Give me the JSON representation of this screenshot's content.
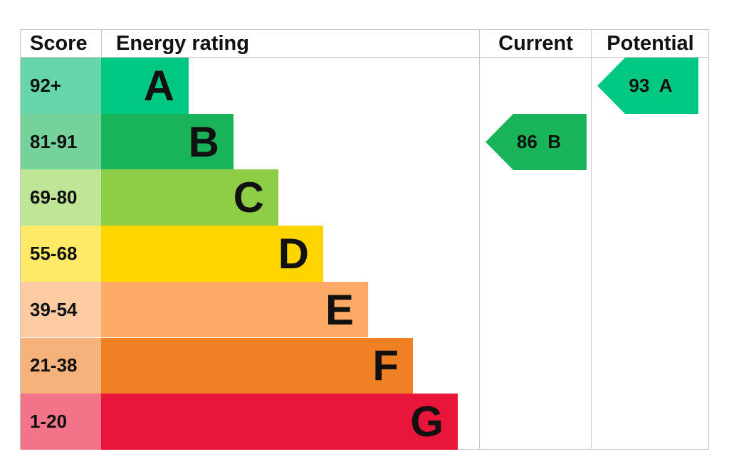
{
  "chart_data": {
    "type": "bar",
    "headers": {
      "score": "Score",
      "rating": "Energy rating",
      "current": "Current",
      "potential": "Potential"
    },
    "bands": [
      {
        "letter": "A",
        "range": "92+",
        "color": "#00c781",
        "score_color": "#66d5a9"
      },
      {
        "letter": "B",
        "range": "81-91",
        "color": "#19b459",
        "score_color": "#75d29b"
      },
      {
        "letter": "C",
        "range": "69-80",
        "color": "#8dce46",
        "score_color": "#bfe597"
      },
      {
        "letter": "D",
        "range": "55-68",
        "color": "#ffd500",
        "score_color": "#ffe966"
      },
      {
        "letter": "E",
        "range": "39-54",
        "color": "#fcaa65",
        "score_color": "#fdcba2"
      },
      {
        "letter": "F",
        "range": "21-38",
        "color": "#ef8023",
        "score_color": "#f5b27b"
      },
      {
        "letter": "G",
        "range": "1-20",
        "color": "#e9153b",
        "score_color": "#f37389"
      }
    ],
    "current": {
      "value": 86,
      "band": "B",
      "label": "86  B",
      "color": "#19b459"
    },
    "potential": {
      "value": 93,
      "band": "A",
      "label": "93  A",
      "color": "#00c781"
    }
  }
}
